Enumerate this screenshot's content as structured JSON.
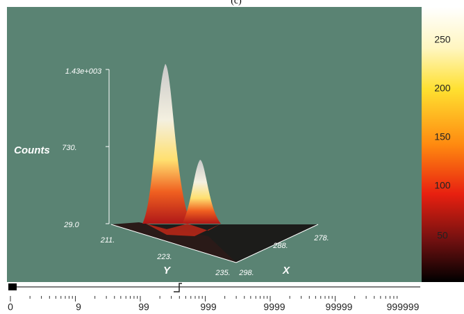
{
  "header": {
    "title": "(c)"
  },
  "plot": {
    "z_axis": {
      "label": "Counts",
      "ticks": [
        "1.43e+003",
        "730.",
        "29.0"
      ]
    },
    "y_axis": {
      "label": "Y",
      "ticks": [
        "211.",
        "223.",
        "235."
      ]
    },
    "x_axis": {
      "label": "X",
      "ticks": [
        "298.",
        "288.",
        "278."
      ]
    }
  },
  "colorbar": {
    "ticks": [
      "250",
      "200",
      "150",
      "100",
      "50"
    ]
  },
  "slider": {
    "ticks": [
      "0",
      "9",
      "99",
      "999",
      "9999",
      "99999",
      "999999"
    ]
  }
}
